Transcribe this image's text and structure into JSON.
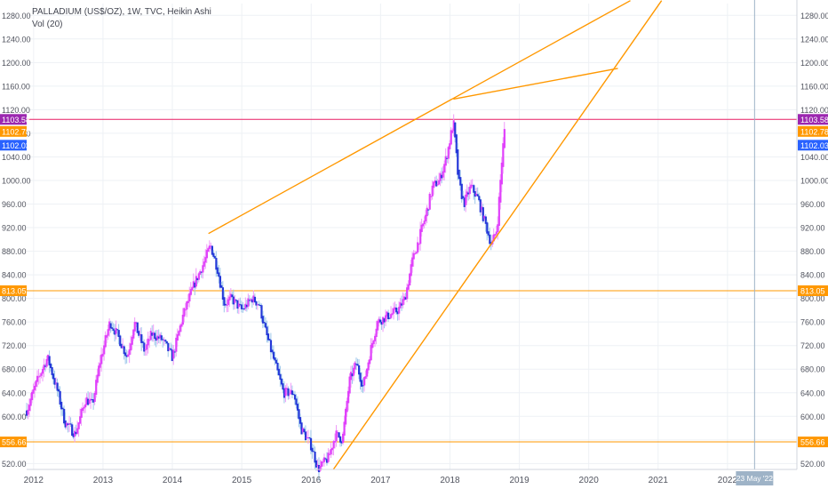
{
  "header": {
    "title": "PALLADIUM (US$/OZ), 1W, TVC, Heikin Ashi",
    "indicator": "Vol (20)"
  },
  "colors": {
    "up": "#e040fb",
    "up_wick": "#ef9af9",
    "down": "#2437d8",
    "down_wick": "#9cc6ea",
    "trendline": "#ff9800",
    "level_line": "#ff9800",
    "price_line": "#e91e63",
    "badge_magenta": "#9c27b0",
    "badge_orange": "#ff9800",
    "badge_blue": "#2962ff",
    "badge_date": "#9eb3c7",
    "grid": "#eef1f5",
    "axis_text": "#50535e"
  },
  "chart_data": {
    "type": "candlestick",
    "y_axis": {
      "ticks": [
        "520.00",
        "560.00",
        "600.00",
        "640.00",
        "680.00",
        "720.00",
        "760.00",
        "800.00",
        "840.00",
        "880.00",
        "920.00",
        "960.00",
        "1000.00",
        "1040.00",
        "1080.00",
        "1120.00",
        "1160.00",
        "1200.00",
        "1240.00",
        "1280.00"
      ],
      "range": [
        510,
        1300
      ]
    },
    "x_axis": {
      "ticks": [
        "2012",
        "2013",
        "2014",
        "2015",
        "2016",
        "2017",
        "2018",
        "2019",
        "2020",
        "2021",
        "2022"
      ],
      "range": [
        2011.9,
        2023.0
      ]
    },
    "price_badges": [
      {
        "label": "1103.58",
        "value": 1103.58,
        "side": "both",
        "color": "magenta",
        "line": true
      },
      {
        "label": "1102.78",
        "value": 1102.78,
        "side": "both",
        "color": "orange",
        "line": false
      },
      {
        "label": "1102.03",
        "value": 1102.03,
        "side": "both",
        "color": "blue",
        "line": false
      },
      {
        "label": "813.05",
        "value": 813.05,
        "side": "both",
        "color": "orange",
        "line": true
      },
      {
        "label": "556.66",
        "value": 556.66,
        "side": "both",
        "color": "orange",
        "line": true
      }
    ],
    "date_marker": {
      "label": "23 May '22",
      "x": 2022.39
    },
    "trendlines": [
      {
        "from": [
          2014.52,
          910
        ],
        "to": [
          2020.6,
          1305
        ]
      },
      {
        "from": [
          2018.05,
          1138
        ],
        "to": [
          2020.42,
          1190
        ]
      },
      {
        "from": [
          2016.32,
          510
        ],
        "to": [
          2021.05,
          1305
        ]
      }
    ],
    "price_path": [
      [
        2011.9,
        610
      ],
      [
        2012.05,
        660
      ],
      [
        2012.2,
        700
      ],
      [
        2012.35,
        640
      ],
      [
        2012.45,
        590
      ],
      [
        2012.6,
        570
      ],
      [
        2012.75,
        630
      ],
      [
        2012.85,
        620
      ],
      [
        2012.95,
        690
      ],
      [
        2013.1,
        760
      ],
      [
        2013.2,
        740
      ],
      [
        2013.35,
        700
      ],
      [
        2013.45,
        760
      ],
      [
        2013.6,
        710
      ],
      [
        2013.7,
        740
      ],
      [
        2013.85,
        730
      ],
      [
        2014.0,
        700
      ],
      [
        2014.15,
        770
      ],
      [
        2014.3,
        820
      ],
      [
        2014.45,
        860
      ],
      [
        2014.55,
        890
      ],
      [
        2014.65,
        850
      ],
      [
        2014.75,
        790
      ],
      [
        2014.85,
        800
      ],
      [
        2015.0,
        780
      ],
      [
        2015.15,
        800
      ],
      [
        2015.25,
        790
      ],
      [
        2015.35,
        740
      ],
      [
        2015.5,
        680
      ],
      [
        2015.6,
        640
      ],
      [
        2015.75,
        640
      ],
      [
        2015.85,
        580
      ],
      [
        2016.0,
        550
      ],
      [
        2016.1,
        510
      ],
      [
        2016.25,
        530
      ],
      [
        2016.35,
        570
      ],
      [
        2016.45,
        560
      ],
      [
        2016.55,
        660
      ],
      [
        2016.65,
        690
      ],
      [
        2016.75,
        650
      ],
      [
        2016.85,
        710
      ],
      [
        2016.95,
        760
      ],
      [
        2017.1,
        770
      ],
      [
        2017.25,
        780
      ],
      [
        2017.35,
        800
      ],
      [
        2017.45,
        860
      ],
      [
        2017.55,
        900
      ],
      [
        2017.65,
        940
      ],
      [
        2017.75,
        990
      ],
      [
        2017.85,
        1000
      ],
      [
        2017.95,
        1040
      ],
      [
        2018.05,
        1100
      ],
      [
        2018.12,
        1000
      ],
      [
        2018.2,
        960
      ],
      [
        2018.3,
        990
      ],
      [
        2018.4,
        970
      ],
      [
        2018.5,
        930
      ],
      [
        2018.6,
        890
      ],
      [
        2018.68,
        920
      ],
      [
        2018.75,
        1040
      ],
      [
        2018.8,
        1103
      ]
    ]
  }
}
